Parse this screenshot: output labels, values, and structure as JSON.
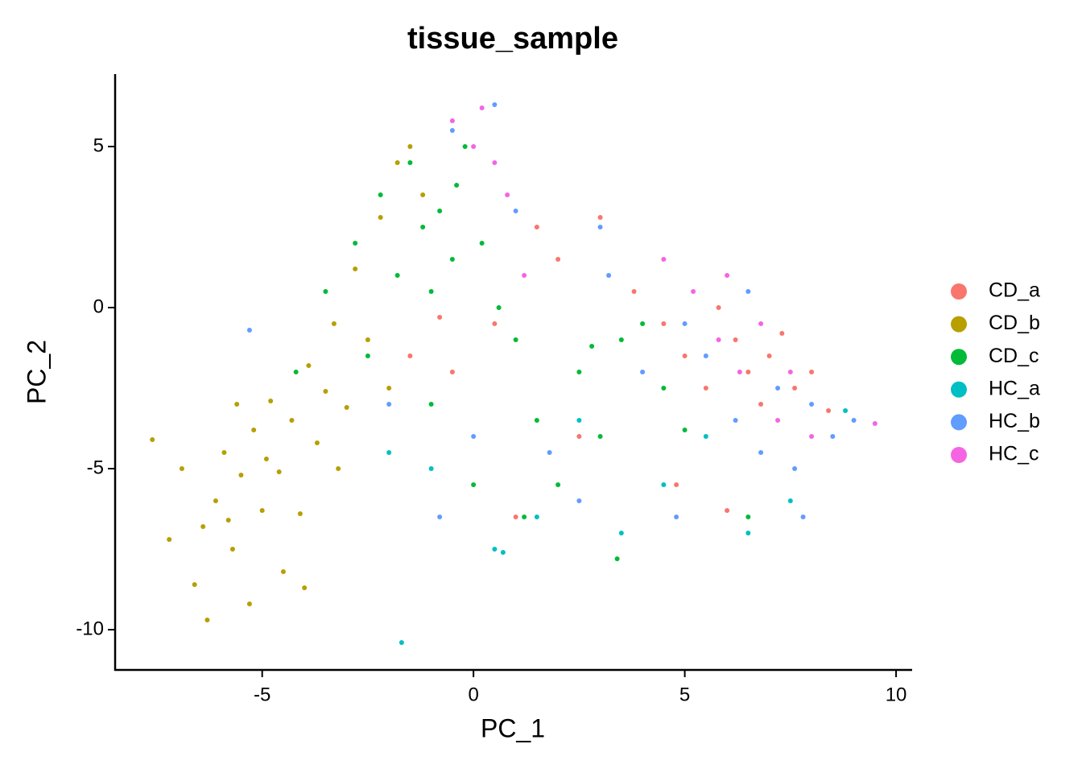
{
  "chart_data": {
    "type": "scatter",
    "title": "tissue_sample",
    "x_label": "PC_1",
    "y_label": "PC_2",
    "xlim": [
      -8.48,
      10.38
    ],
    "ylim": [
      -11.25,
      7.25
    ],
    "xticks": [
      -5,
      0,
      5,
      10
    ],
    "yticks": [
      -10,
      -5,
      0,
      5
    ],
    "legend": "right",
    "series": [
      {
        "name": "CD_a",
        "color": "#F8766D",
        "x": [
          -1.5,
          -0.5,
          0.5,
          1.0,
          2.0,
          3.0,
          3.8,
          4.5,
          5.0,
          5.5,
          5.8,
          6.2,
          6.5,
          6.8,
          7.0,
          7.3,
          7.6,
          8.0,
          8.4,
          4.8,
          2.5,
          6.0,
          -0.8,
          1.5
        ],
        "values": [
          -1.5,
          -2.0,
          -0.5,
          -6.5,
          1.5,
          2.8,
          0.5,
          -0.5,
          -1.5,
          -2.5,
          0.0,
          -1.0,
          -2.0,
          -3.0,
          -1.5,
          -0.8,
          -2.5,
          -2.0,
          -3.2,
          -5.5,
          -4.0,
          -6.3,
          -0.3,
          2.5
        ]
      },
      {
        "name": "CD_b",
        "color": "#B79F00",
        "x": [
          -7.6,
          -7.2,
          -6.9,
          -6.6,
          -6.3,
          -6.1,
          -5.9,
          -5.7,
          -5.5,
          -5.3,
          -5.2,
          -5.0,
          -4.8,
          -4.6,
          -4.5,
          -4.3,
          -4.1,
          -3.9,
          -3.7,
          -3.5,
          -3.3,
          -3.0,
          -2.8,
          -2.5,
          -2.2,
          -1.8,
          -1.5,
          -1.2,
          -4.9,
          -5.6,
          -6.4,
          -4.0,
          -3.2,
          -2.0,
          -5.8
        ],
        "values": [
          -4.1,
          -7.2,
          -5.0,
          -8.6,
          -9.7,
          -6.0,
          -4.5,
          -7.5,
          -5.2,
          -9.2,
          -3.8,
          -6.3,
          -2.9,
          -5.1,
          -8.2,
          -3.5,
          -6.4,
          -1.8,
          -4.2,
          -2.6,
          -0.5,
          -3.1,
          1.2,
          -1.0,
          2.8,
          4.5,
          5.0,
          3.5,
          -4.7,
          -3.0,
          -6.8,
          -8.7,
          -5.0,
          -2.5,
          -6.6
        ]
      },
      {
        "name": "CD_c",
        "color": "#00BA38",
        "x": [
          -3.5,
          -2.8,
          -2.2,
          -1.8,
          -1.5,
          -1.2,
          -1.0,
          -0.8,
          -0.5,
          -0.2,
          0.2,
          0.6,
          1.0,
          1.5,
          2.0,
          2.5,
          3.0,
          3.5,
          4.0,
          4.5,
          5.0,
          -2.5,
          -1.0,
          0.0,
          1.2,
          2.8,
          3.4,
          -0.4,
          -4.2,
          6.5
        ],
        "values": [
          0.5,
          2.0,
          3.5,
          1.0,
          4.5,
          2.5,
          0.5,
          3.0,
          1.5,
          5.0,
          2.0,
          0.0,
          -1.0,
          -3.5,
          -5.5,
          -2.0,
          -4.0,
          -1.0,
          -0.5,
          -2.5,
          -3.8,
          -1.5,
          -3.0,
          -5.5,
          -6.5,
          -1.2,
          -7.8,
          3.8,
          -2.0,
          -6.5
        ]
      },
      {
        "name": "HC_a",
        "color": "#00BFC4",
        "x": [
          -2.0,
          -1.0,
          0.5,
          1.5,
          2.5,
          3.5,
          4.5,
          5.5,
          6.5,
          7.5,
          8.8,
          -1.7,
          0.7
        ],
        "values": [
          -4.5,
          -5.0,
          -7.5,
          -6.5,
          -3.5,
          -7.0,
          -5.5,
          -4.0,
          -7.0,
          -6.0,
          -3.2,
          -10.4,
          -7.6
        ]
      },
      {
        "name": "HC_b",
        "color": "#619CFF",
        "x": [
          -2.0,
          -0.5,
          0.5,
          1.0,
          1.8,
          2.5,
          3.2,
          4.0,
          4.8,
          5.5,
          6.2,
          6.8,
          7.2,
          7.6,
          8.0,
          8.5,
          9.0,
          6.5,
          3.0,
          0.0,
          -0.8,
          7.8,
          5.0,
          -5.3
        ],
        "values": [
          -3.0,
          5.5,
          6.3,
          3.0,
          -4.5,
          -6.0,
          1.0,
          -2.0,
          -6.5,
          -1.5,
          -3.5,
          -4.5,
          -2.5,
          -5.0,
          -3.0,
          -4.0,
          -3.5,
          0.5,
          2.5,
          -4.0,
          -6.5,
          -6.5,
          -0.5,
          -0.7
        ]
      },
      {
        "name": "HC_c",
        "color": "#F564E3",
        "x": [
          -0.5,
          0.0,
          0.5,
          0.8,
          1.2,
          4.5,
          5.2,
          5.8,
          6.3,
          6.8,
          7.2,
          7.5,
          8.0,
          9.5,
          6.0,
          0.2
        ],
        "values": [
          5.8,
          5.0,
          4.5,
          3.5,
          1.0,
          1.5,
          0.5,
          -1.0,
          -2.0,
          -0.5,
          -3.5,
          -2.0,
          -4.0,
          -3.6,
          1.0,
          6.2
        ]
      }
    ]
  }
}
